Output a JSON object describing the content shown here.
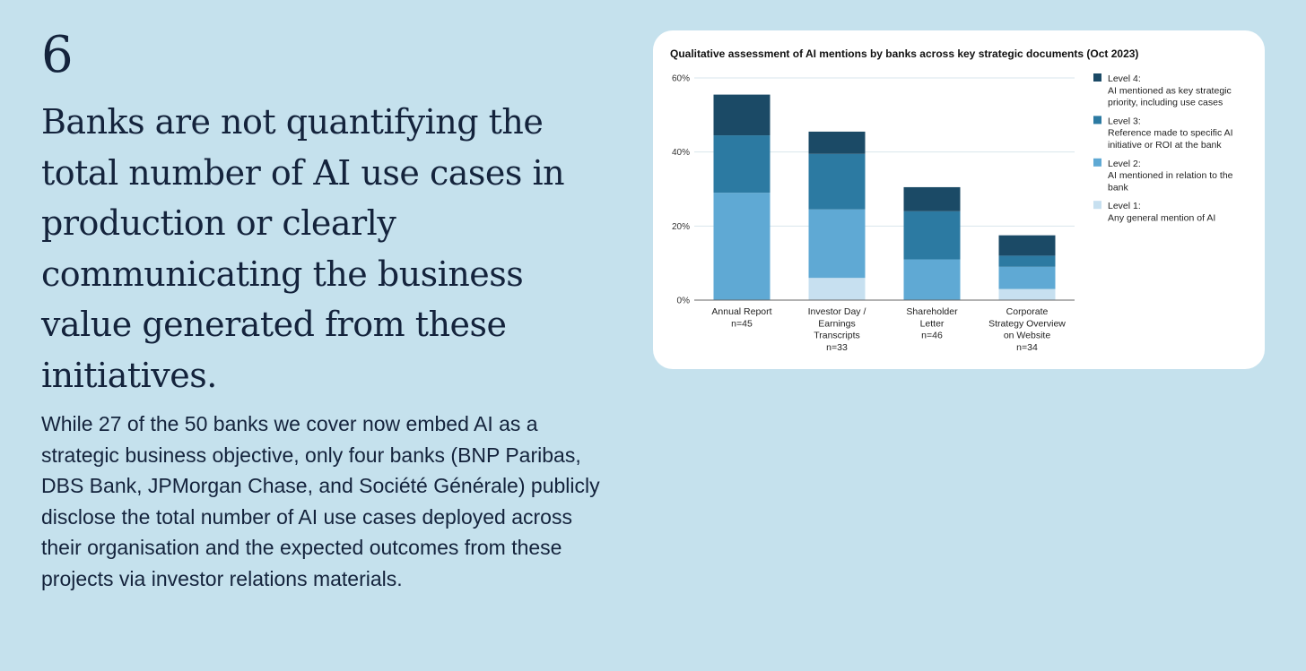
{
  "section": {
    "number": "6"
  },
  "headline": "Banks are not quantifying the total number of AI use cases in production or clearly communicating the business value generated from these initiatives.",
  "body": "While 27 of the 50 banks we cover now embed AI as a strategic business objective, only four banks (BNP Paribas, DBS Bank, JPMorgan Chase, and Société Générale) publicly disclose the total number of AI use cases deployed across their organisation and the expected outcomes from these projects via investor relations materials.",
  "colors": {
    "background": "#c5e1ed",
    "level4": "#1b4a66",
    "level3": "#2c7aa2",
    "level2": "#5fa9d4",
    "level1": "#c7e0f0"
  },
  "chart_data": {
    "type": "bar",
    "stacked": true,
    "title": "Qualitative assessment of AI mentions by banks across key strategic documents (Oct 2023)",
    "xlabel": "",
    "ylabel": "",
    "ylim": [
      0,
      60
    ],
    "y_ticks": [
      0,
      20,
      40,
      60
    ],
    "y_tick_labels": [
      "0%",
      "20%",
      "40%",
      "60%"
    ],
    "grid": true,
    "legend_position": "right",
    "categories": [
      [
        "Annual Report",
        "n=45"
      ],
      [
        "Investor Day /",
        "Earnings",
        "Transcripts",
        "n=33"
      ],
      [
        "Shareholder",
        "Letter",
        "n=46"
      ],
      [
        "Corporate",
        "Strategy Overview",
        "on Website",
        "n=34"
      ]
    ],
    "series": [
      {
        "name": "Level 1:",
        "description": [
          "Any general mention of AI"
        ],
        "color": "#c7e0f0",
        "values": [
          0,
          6,
          0,
          3
        ]
      },
      {
        "name": "Level 2:",
        "description": [
          "AI mentioned in relation to the",
          "bank"
        ],
        "color": "#5fa9d4",
        "values": [
          29,
          18.5,
          11,
          6
        ]
      },
      {
        "name": "Level 3:",
        "description": [
          "Reference made to specific AI",
          "initiative or ROI at the bank"
        ],
        "color": "#2c7aa2",
        "values": [
          15.5,
          15,
          13,
          3
        ]
      },
      {
        "name": "Level 4:",
        "description": [
          "AI mentioned as key strategic",
          "priority, including use cases"
        ],
        "color": "#1b4a66",
        "values": [
          11,
          6,
          6.5,
          5.5
        ]
      }
    ]
  }
}
